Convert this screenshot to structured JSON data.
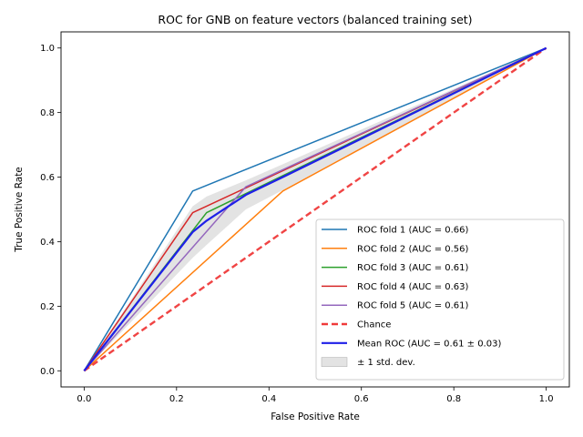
{
  "chart_data": {
    "type": "line",
    "title": "ROC for GNB on feature vectors (balanced training set)",
    "xlabel": "False Positive Rate",
    "ylabel": "True Positive Rate",
    "xlim": [
      -0.05,
      1.05
    ],
    "ylim": [
      -0.05,
      1.05
    ],
    "xticks": [
      "0.0",
      "0.2",
      "0.4",
      "0.6",
      "0.8",
      "1.0"
    ],
    "yticks": [
      "0.0",
      "0.2",
      "0.4",
      "0.6",
      "0.8",
      "1.0"
    ],
    "grid": false,
    "legend_position": "lower-right",
    "series": [
      {
        "name": "ROC fold 1 (AUC = 0.66)",
        "color": "#1f77b4",
        "width": 1.5,
        "dash": "",
        "x": [
          0.0,
          0.235,
          1.0
        ],
        "y": [
          0.0,
          0.557,
          1.0
        ]
      },
      {
        "name": "ROC fold 2 (AUC = 0.56)",
        "color": "#ff7f0e",
        "width": 1.5,
        "dash": "",
        "x": [
          0.0,
          0.43,
          1.0
        ],
        "y": [
          0.0,
          0.557,
          1.0
        ]
      },
      {
        "name": "ROC fold 3 (AUC = 0.61)",
        "color": "#2ca02c",
        "width": 1.5,
        "dash": "",
        "x": [
          0.0,
          0.265,
          1.0
        ],
        "y": [
          0.0,
          0.49,
          1.0
        ]
      },
      {
        "name": "ROC fold 4 (AUC = 0.63)",
        "color": "#d62728",
        "width": 1.5,
        "dash": "",
        "x": [
          0.0,
          0.235,
          1.0
        ],
        "y": [
          0.0,
          0.49,
          1.0
        ]
      },
      {
        "name": "ROC fold 5 (AUC = 0.61)",
        "color": "#9467bd",
        "width": 1.5,
        "dash": "",
        "x": [
          0.0,
          0.35,
          1.0
        ],
        "y": [
          0.0,
          0.57,
          1.0
        ]
      },
      {
        "name": "Chance",
        "color": "#ef3a3a",
        "width": 2.4,
        "dash": "7,4",
        "x": [
          0.0,
          1.0
        ],
        "y": [
          0.0,
          1.0
        ]
      },
      {
        "name": "Mean ROC (AUC = 0.61 ± 0.03)",
        "color": "#1f1fe8",
        "width": 2.2,
        "dash": "",
        "x": [
          0.0,
          0.235,
          0.265,
          0.35,
          0.43,
          1.0
        ],
        "y": [
          0.0,
          0.43,
          0.465,
          0.545,
          0.6,
          1.0
        ]
      }
    ],
    "band": {
      "name": "± 1 std. dev.",
      "color": "#c8c8c8",
      "x": [
        0.0,
        0.235,
        0.265,
        0.35,
        0.43,
        1.0
      ],
      "upper": [
        0.0,
        0.51,
        0.54,
        0.59,
        0.64,
        1.0
      ],
      "lower": [
        0.0,
        0.35,
        0.39,
        0.5,
        0.56,
        1.0
      ]
    }
  }
}
